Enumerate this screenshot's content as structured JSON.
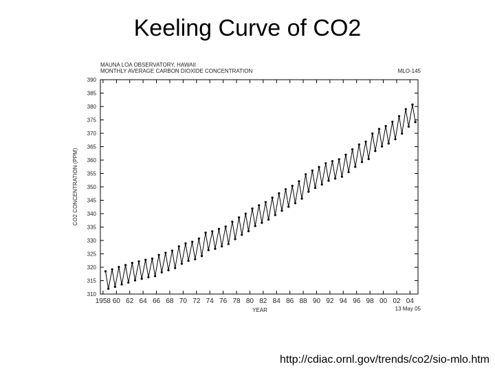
{
  "chart_data": {
    "type": "line",
    "title": "Keeling Curve of CO2",
    "subtitle": [
      "MAUNA LOA OBSERVATORY, HAWAII",
      "MONTHLY AVERAGE CARBON DIOXIDE CONCENTRATION"
    ],
    "station": "MLO-145",
    "date": "13 May 05",
    "source": "http://cdiac.ornl.gov/trends/co2/sio-mlo.htm",
    "x_label": "YEAR",
    "y_label": "CO2 CONCENTRATION (PPM)",
    "color": "#000000",
    "x": [
      1958.37,
      1958.8,
      1959.37,
      1959.8,
      1960.37,
      1960.8,
      1961.37,
      1961.8,
      1962.37,
      1962.8,
      1963.37,
      1963.8,
      1964.37,
      1964.8,
      1965.37,
      1965.8,
      1966.37,
      1966.8,
      1967.37,
      1967.8,
      1968.37,
      1968.8,
      1969.37,
      1969.8,
      1970.37,
      1970.8,
      1971.37,
      1971.8,
      1972.37,
      1972.8,
      1973.37,
      1973.8,
      1974.37,
      1974.8,
      1975.37,
      1975.8,
      1976.37,
      1976.8,
      1977.37,
      1977.8,
      1978.37,
      1978.8,
      1979.37,
      1979.8,
      1980.37,
      1980.8,
      1981.37,
      1981.8,
      1982.37,
      1982.8,
      1983.37,
      1983.8,
      1984.37,
      1984.8,
      1985.37,
      1985.8,
      1986.37,
      1986.8,
      1987.37,
      1987.8,
      1988.37,
      1988.8,
      1989.37,
      1989.8,
      1990.37,
      1990.8,
      1991.37,
      1991.8,
      1992.37,
      1992.8,
      1993.37,
      1993.8,
      1994.37,
      1994.8,
      1995.37,
      1995.8,
      1996.37,
      1996.8,
      1997.37,
      1997.8,
      1998.37,
      1998.8,
      1999.37,
      1999.8,
      2000.37,
      2000.8,
      2001.37,
      2001.8,
      2002.37,
      2002.8,
      2003.37,
      2003.8,
      2004.37,
      2004.8
    ],
    "values": [
      318.5,
      312.0,
      319.2,
      312.7,
      320.1,
      313.6,
      320.8,
      314.3,
      321.6,
      315.1,
      322.2,
      315.7,
      322.8,
      316.3,
      323.2,
      316.7,
      324.6,
      318.1,
      325.4,
      318.9,
      326.2,
      319.7,
      327.8,
      321.3,
      328.9,
      322.4,
      329.5,
      323.0,
      330.7,
      324.2,
      332.9,
      326.4,
      333.4,
      326.9,
      334.3,
      327.8,
      335.2,
      328.7,
      337.0,
      330.5,
      338.6,
      332.1,
      340.0,
      333.5,
      341.9,
      335.4,
      343.1,
      336.6,
      344.3,
      337.8,
      346.0,
      339.5,
      347.6,
      341.1,
      349.1,
      342.6,
      350.4,
      343.9,
      352.1,
      345.6,
      354.7,
      348.2,
      356.1,
      349.6,
      357.4,
      350.9,
      358.8,
      352.3,
      359.6,
      353.1,
      360.3,
      353.8,
      362.0,
      355.5,
      364.0,
      357.5,
      365.8,
      359.3,
      366.9,
      360.4,
      369.9,
      363.4,
      371.6,
      365.1,
      372.7,
      366.2,
      374.3,
      367.8,
      376.4,
      369.9,
      379.0,
      372.5,
      380.7,
      374.2
    ],
    "xlim": [
      1957.6,
      2005.2
    ],
    "xticks": [
      1958,
      {
        "value": 1960,
        "label": "60"
      },
      {
        "value": 1962,
        "label": "62"
      },
      {
        "value": 1964,
        "label": "64"
      },
      {
        "value": 1966,
        "label": "66"
      },
      {
        "value": 1968,
        "label": "68"
      },
      {
        "value": 1970,
        "label": "70"
      },
      {
        "value": 1972,
        "label": "72"
      },
      {
        "value": 1974,
        "label": "74"
      },
      {
        "value": 1976,
        "label": "76"
      },
      {
        "value": 1978,
        "label": "78"
      },
      {
        "value": 1980,
        "label": "80"
      },
      {
        "value": 1982,
        "label": "82"
      },
      {
        "value": 1984,
        "label": "84"
      },
      {
        "value": 1986,
        "label": "86"
      },
      {
        "value": 1988,
        "label": "88"
      },
      {
        "value": 1990,
        "label": "90"
      },
      {
        "value": 1992,
        "label": "92"
      },
      {
        "value": 1994,
        "label": "94"
      },
      {
        "value": 1996,
        "label": "96"
      },
      {
        "value": 1998,
        "label": "98"
      },
      {
        "value": 2000,
        "label": "00"
      },
      {
        "value": 2002,
        "label": "02"
      },
      {
        "value": 2004,
        "label": "04"
      }
    ],
    "ylim": [
      310,
      390
    ],
    "yticks": [
      310,
      315,
      320,
      325,
      330,
      335,
      340,
      345,
      350,
      355,
      360,
      365,
      370,
      375,
      380,
      385,
      390
    ]
  }
}
